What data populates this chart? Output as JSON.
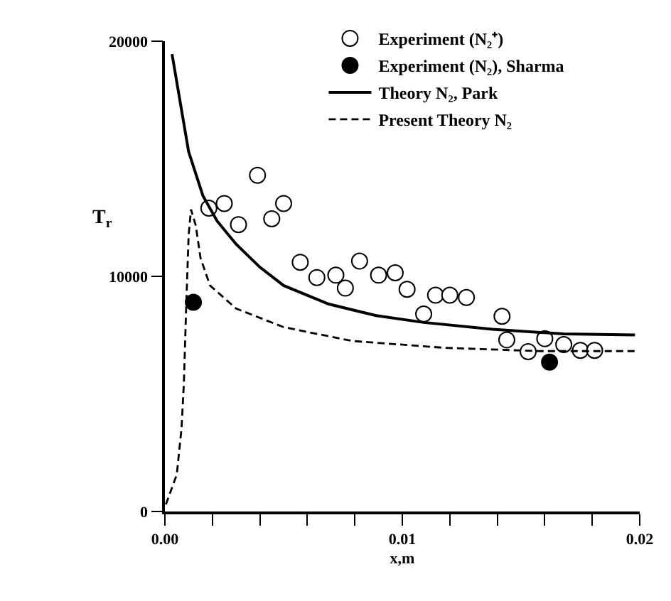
{
  "chart_data": {
    "type": "line",
    "xlabel": "x,m",
    "ylabel": "T$_{r}$",
    "xlim": [
      0,
      0.02
    ],
    "ylim": [
      0,
      20000
    ],
    "xticks": [
      {
        "value": 0,
        "label": "0.00"
      },
      {
        "value": 0.002,
        "label": null
      },
      {
        "value": 0.004,
        "label": null
      },
      {
        "value": 0.006,
        "label": null
      },
      {
        "value": 0.008,
        "label": null
      },
      {
        "value": 0.01,
        "label": "0.01"
      },
      {
        "value": 0.012,
        "label": null
      },
      {
        "value": 0.014,
        "label": null
      },
      {
        "value": 0.016,
        "label": null
      },
      {
        "value": 0.018,
        "label": null
      },
      {
        "value": 0.02,
        "label": "0.02"
      }
    ],
    "yticks": [
      0,
      10000,
      20000
    ],
    "legend": "top right",
    "series": [
      {
        "name": "Experiment (N₂⁺)",
        "type": "scatter",
        "marker": "circle",
        "color": "#ffffff",
        "x": [
          0.00185,
          0.0025,
          0.0031,
          0.0039,
          0.0045,
          0.005,
          0.0057,
          0.0064,
          0.0072,
          0.0076,
          0.0082,
          0.009,
          0.0097,
          0.0102,
          0.0109,
          0.0114,
          0.012,
          0.0127,
          0.0142,
          0.0144,
          0.0153,
          0.016,
          0.0168,
          0.0175,
          0.0181
        ],
        "values": [
          12900,
          13100,
          12200,
          14300,
          12450,
          13100,
          10600,
          9950,
          10050,
          9500,
          10650,
          10050,
          10150,
          9450,
          8400,
          9200,
          9200,
          9100,
          8300,
          7300,
          6800,
          7350,
          7100,
          6850,
          6850
        ]
      },
      {
        "name": "Experiment (N₂), Sharma",
        "type": "scatter",
        "marker": "circle",
        "color": "#000000",
        "x": [
          0.0012,
          0.0162
        ],
        "values": [
          8900,
          6350
        ]
      },
      {
        "name": "Theory N₂, Park",
        "marker": "none",
        "line_style": "solid",
        "color": "#000000",
        "x": [
          0.0003,
          0.001,
          0.0016,
          0.0022,
          0.003,
          0.004,
          0.005,
          0.0069,
          0.0089,
          0.0109,
          0.0138,
          0.0168,
          0.0198
        ],
        "values": [
          19450,
          15300,
          13430,
          12350,
          11370,
          10390,
          9610,
          8820,
          8330,
          8040,
          7750,
          7550,
          7510
        ]
      },
      {
        "name": "Present Theory N₂",
        "marker": "none",
        "line_style": "dashed",
        "color": "#000000",
        "x": [
          4e-05,
          0.0005,
          0.0007,
          0.0008,
          0.0009,
          0.001,
          0.0011,
          0.0013,
          0.0015,
          0.0019,
          0.003,
          0.005,
          0.0079,
          0.0118,
          0.0158,
          0.0199
        ],
        "values": [
          300,
          1570,
          3530,
          5490,
          8820,
          11760,
          12840,
          12160,
          10780,
          9610,
          8630,
          7840,
          7250,
          6960,
          6820,
          6820
        ]
      }
    ]
  }
}
